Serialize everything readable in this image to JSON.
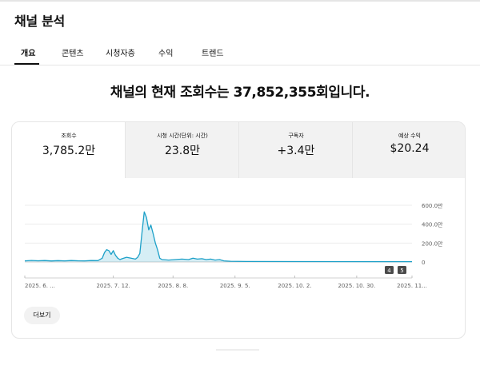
{
  "header": {
    "title": "채널 분석"
  },
  "tabs": [
    {
      "label": "개요",
      "active": true
    },
    {
      "label": "콘텐츠",
      "active": false
    },
    {
      "label": "시청자층",
      "active": false
    },
    {
      "label": "수익",
      "active": false
    },
    {
      "label": "트렌드",
      "active": false
    }
  ],
  "headline": "채널의 현재 조회수는 37,852,355회입니다.",
  "metrics": [
    {
      "label": "조회수",
      "value": "3,785.2만",
      "selected": true
    },
    {
      "label": "시청 시간(단위: 시간)",
      "value": "23.8만",
      "selected": false
    },
    {
      "label": "구독자",
      "value": "+3.4만",
      "selected": false
    },
    {
      "label": "예상 수익",
      "value": "$20.24",
      "selected": false
    }
  ],
  "chart_data": {
    "type": "area",
    "y_tick_labels": [
      "600.0만",
      "400.0만",
      "200.0만",
      "0"
    ],
    "y_ticks": [
      6000000,
      4000000,
      2000000,
      0
    ],
    "ylim": [
      0,
      6000000
    ],
    "x_tick_labels": [
      "2025. 6. ...",
      "2025. 7. 12.",
      "2025. 8. 8.",
      "2025. 9. 5.",
      "2025. 10. 2.",
      "2025. 10. 30.",
      "2025. 11..."
    ],
    "x_tick_days": [
      0,
      40,
      67,
      95,
      122,
      150,
      175
    ],
    "color": "#1ca0c8",
    "points": [
      [
        0,
        120000
      ],
      [
        3,
        160000
      ],
      [
        6,
        130000
      ],
      [
        9,
        150000
      ],
      [
        12,
        110000
      ],
      [
        15,
        140000
      ],
      [
        18,
        120000
      ],
      [
        21,
        150000
      ],
      [
        24,
        130000
      ],
      [
        27,
        120000
      ],
      [
        30,
        150000
      ],
      [
        33,
        140000
      ],
      [
        35,
        400000
      ],
      [
        36,
        1000000
      ],
      [
        37,
        1300000
      ],
      [
        38,
        1200000
      ],
      [
        39,
        800000
      ],
      [
        40,
        1200000
      ],
      [
        41,
        700000
      ],
      [
        42,
        400000
      ],
      [
        43,
        250000
      ],
      [
        44,
        350000
      ],
      [
        46,
        500000
      ],
      [
        48,
        400000
      ],
      [
        50,
        300000
      ],
      [
        51,
        500000
      ],
      [
        52,
        900000
      ],
      [
        53,
        3200000
      ],
      [
        54,
        5300000
      ],
      [
        55,
        4700000
      ],
      [
        56,
        3400000
      ],
      [
        57,
        3900000
      ],
      [
        58,
        3000000
      ],
      [
        59,
        2000000
      ],
      [
        60,
        1300000
      ],
      [
        61,
        400000
      ],
      [
        62,
        250000
      ],
      [
        65,
        200000
      ],
      [
        68,
        250000
      ],
      [
        71,
        300000
      ],
      [
        74,
        250000
      ],
      [
        76,
        400000
      ],
      [
        78,
        300000
      ],
      [
        80,
        350000
      ],
      [
        82,
        250000
      ],
      [
        84,
        300000
      ],
      [
        86,
        200000
      ],
      [
        88,
        250000
      ],
      [
        90,
        120000
      ],
      [
        93,
        80000
      ],
      [
        100,
        50000
      ],
      [
        130,
        40000
      ],
      [
        160,
        30000
      ],
      [
        175,
        30000
      ]
    ],
    "badges": [
      "4",
      "5"
    ]
  },
  "more_button": {
    "label": "더보기"
  }
}
